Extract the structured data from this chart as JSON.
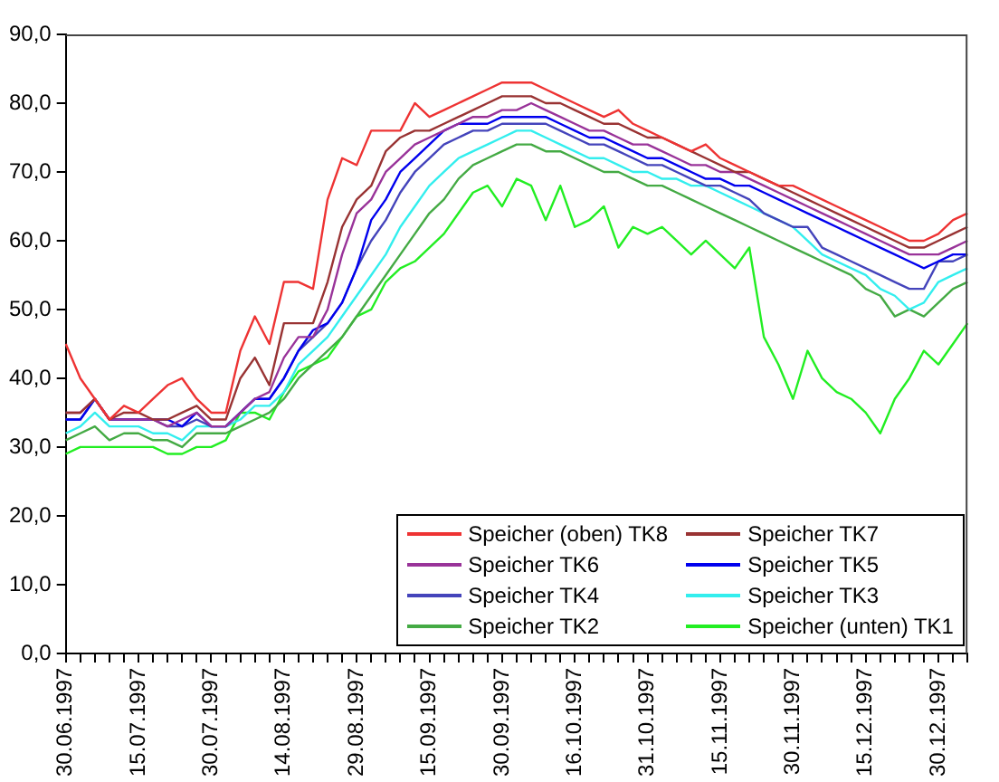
{
  "chart_data": {
    "type": "line",
    "categories": [
      "30.06.1997",
      null,
      null,
      null,
      null,
      "15.07.1997",
      null,
      null,
      null,
      null,
      "30.07.1997",
      null,
      null,
      null,
      null,
      "14.08.1997",
      null,
      null,
      null,
      null,
      "29.08.1997",
      null,
      null,
      null,
      null,
      "15.09.1997",
      null,
      null,
      null,
      null,
      "30.09.1997",
      null,
      null,
      null,
      null,
      "16.10.1997",
      null,
      null,
      null,
      null,
      "31.10.1997",
      null,
      null,
      null,
      null,
      "15.11.1997",
      null,
      null,
      null,
      null,
      "30.11.1997",
      null,
      null,
      null,
      null,
      "15.12.1997",
      null,
      null,
      null,
      null,
      "30.12.1997",
      null,
      null
    ],
    "ylim": [
      0,
      90
    ],
    "yticks": [
      {
        "value": 0,
        "label": "0,0"
      },
      {
        "value": 10,
        "label": "10,0"
      },
      {
        "value": 20,
        "label": "20,0"
      },
      {
        "value": 30,
        "label": "30,0"
      },
      {
        "value": 40,
        "label": "40,0"
      },
      {
        "value": 50,
        "label": "50,0"
      },
      {
        "value": 60,
        "label": "60,0"
      },
      {
        "value": 70,
        "label": "70,0"
      },
      {
        "value": 80,
        "label": "80,0"
      },
      {
        "value": 90,
        "label": "90,0"
      }
    ],
    "grid": false,
    "legend": "bottom right",
    "marker": "none",
    "line_style": "solid",
    "series": [
      {
        "name": "Speicher (oben) TK8",
        "color": "#ee3333",
        "values": [
          45,
          40,
          37,
          34,
          36,
          35,
          37,
          39,
          40,
          37,
          35,
          35,
          44,
          49,
          45,
          54,
          54,
          53,
          66,
          72,
          71,
          76,
          76,
          76,
          80,
          78,
          79,
          80,
          81,
          82,
          83,
          83,
          83,
          82,
          81,
          80,
          79,
          78,
          79,
          77,
          76,
          75,
          74,
          73,
          74,
          72,
          71,
          70,
          69,
          68,
          68,
          67,
          66,
          65,
          64,
          63,
          62,
          61,
          60,
          60,
          61,
          63,
          64
        ]
      },
      {
        "name": "Speicher TK7",
        "color": "#993333",
        "values": [
          35,
          35,
          37,
          34,
          35,
          35,
          34,
          34,
          35,
          36,
          34,
          34,
          40,
          43,
          39,
          48,
          48,
          48,
          54,
          62,
          66,
          68,
          73,
          75,
          76,
          76,
          77,
          78,
          79,
          80,
          81,
          81,
          81,
          80,
          80,
          79,
          78,
          77,
          77,
          76,
          75,
          75,
          74,
          73,
          72,
          71,
          70,
          70,
          69,
          68,
          67,
          66,
          65,
          64,
          63,
          62,
          61,
          60,
          59,
          59,
          60,
          61,
          62
        ]
      },
      {
        "name": "Speicher TK6",
        "color": "#993399",
        "values": [
          35,
          35,
          37,
          34,
          34,
          34,
          34,
          33,
          34,
          35,
          33,
          33,
          35,
          37,
          38,
          43,
          46,
          46,
          50,
          58,
          64,
          66,
          70,
          72,
          74,
          75,
          76,
          77,
          78,
          78,
          79,
          79,
          80,
          79,
          78,
          77,
          76,
          76,
          75,
          74,
          74,
          73,
          72,
          71,
          71,
          70,
          70,
          69,
          68,
          67,
          66,
          65,
          64,
          63,
          62,
          61,
          60,
          59,
          58,
          58,
          58,
          59,
          60
        ]
      },
      {
        "name": "Speicher TK5",
        "color": "#0000ee",
        "values": [
          34,
          34,
          37,
          34,
          34,
          34,
          34,
          34,
          33,
          35,
          33,
          33,
          35,
          37,
          37,
          40,
          44,
          47,
          48,
          51,
          56,
          63,
          66,
          70,
          72,
          74,
          76,
          77,
          77,
          77,
          78,
          78,
          78,
          78,
          77,
          76,
          75,
          75,
          74,
          73,
          72,
          72,
          71,
          70,
          69,
          69,
          68,
          68,
          67,
          66,
          65,
          64,
          63,
          62,
          61,
          60,
          59,
          58,
          57,
          56,
          57,
          58,
          58
        ]
      },
      {
        "name": "Speicher TK4",
        "color": "#4444bb",
        "values": [
          34,
          34,
          37,
          34,
          34,
          34,
          34,
          33,
          33,
          34,
          33,
          33,
          35,
          37,
          37,
          40,
          44,
          46,
          48,
          51,
          56,
          60,
          63,
          67,
          70,
          72,
          74,
          75,
          76,
          76,
          77,
          77,
          77,
          77,
          76,
          75,
          74,
          74,
          73,
          72,
          71,
          71,
          70,
          69,
          68,
          68,
          67,
          66,
          64,
          63,
          62,
          62,
          59,
          58,
          57,
          56,
          55,
          54,
          53,
          53,
          57,
          57,
          58
        ]
      },
      {
        "name": "Speicher TK3",
        "color": "#33eeee",
        "values": [
          32,
          33,
          35,
          33,
          33,
          33,
          32,
          32,
          31,
          33,
          33,
          33,
          34,
          36,
          36,
          38,
          42,
          44,
          46,
          49,
          52,
          55,
          58,
          62,
          65,
          68,
          70,
          72,
          73,
          74,
          75,
          76,
          76,
          75,
          74,
          73,
          72,
          72,
          71,
          70,
          70,
          69,
          69,
          68,
          68,
          67,
          66,
          65,
          64,
          63,
          62,
          60,
          58,
          57,
          56,
          55,
          53,
          52,
          50,
          51,
          54,
          55,
          56
        ]
      },
      {
        "name": "Speicher TK2",
        "color": "#44aa44",
        "values": [
          31,
          32,
          33,
          31,
          32,
          32,
          31,
          31,
          30,
          32,
          32,
          32,
          33,
          34,
          35,
          37,
          40,
          42,
          44,
          46,
          49,
          52,
          55,
          58,
          61,
          64,
          66,
          69,
          71,
          72,
          73,
          74,
          74,
          73,
          73,
          72,
          71,
          70,
          70,
          69,
          68,
          68,
          67,
          66,
          65,
          64,
          63,
          62,
          61,
          60,
          59,
          58,
          57,
          56,
          55,
          53,
          52,
          49,
          50,
          49,
          51,
          53,
          54
        ]
      },
      {
        "name": "Speicher (unten) TK1",
        "color": "#22ee22",
        "values": [
          29,
          30,
          30,
          30,
          30,
          30,
          30,
          29,
          29,
          30,
          30,
          31,
          35,
          35,
          34,
          38,
          41,
          42,
          43,
          46,
          49,
          50,
          54,
          56,
          57,
          59,
          61,
          64,
          67,
          68,
          65,
          69,
          68,
          63,
          68,
          62,
          63,
          65,
          59,
          62,
          61,
          62,
          60,
          58,
          60,
          58,
          56,
          59,
          46,
          42,
          37,
          44,
          40,
          38,
          37,
          35,
          32,
          37,
          40,
          44,
          42,
          45,
          48
        ]
      }
    ]
  }
}
